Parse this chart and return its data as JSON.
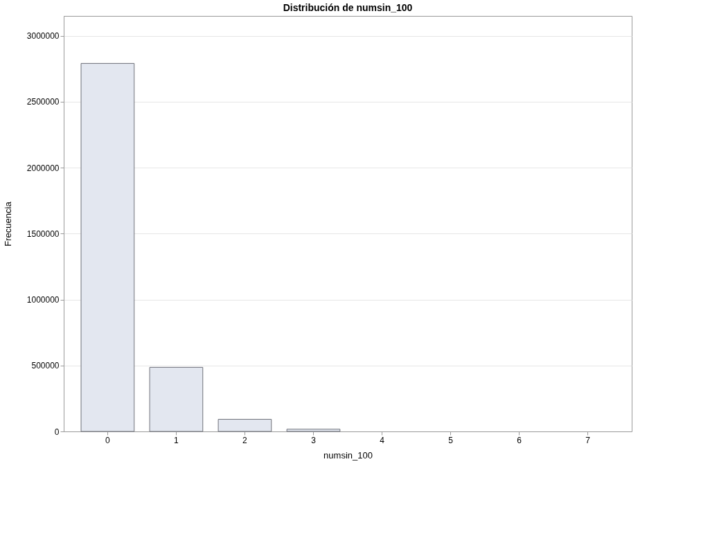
{
  "chart_data": {
    "type": "bar",
    "title": "Distribución de numsin_100",
    "xlabel": "numsin_100",
    "ylabel": "Frecuencia",
    "categories": [
      "0",
      "1",
      "2",
      "3",
      "4",
      "5",
      "6",
      "7"
    ],
    "values": [
      2790000,
      486000,
      92000,
      17000,
      null,
      null,
      null,
      null
    ],
    "color": "#e3e7f0",
    "ylim": [
      0,
      3150000
    ],
    "yticks": [
      0,
      500000,
      1000000,
      1500000,
      2000000,
      2500000,
      3000000
    ],
    "grid": "y"
  }
}
